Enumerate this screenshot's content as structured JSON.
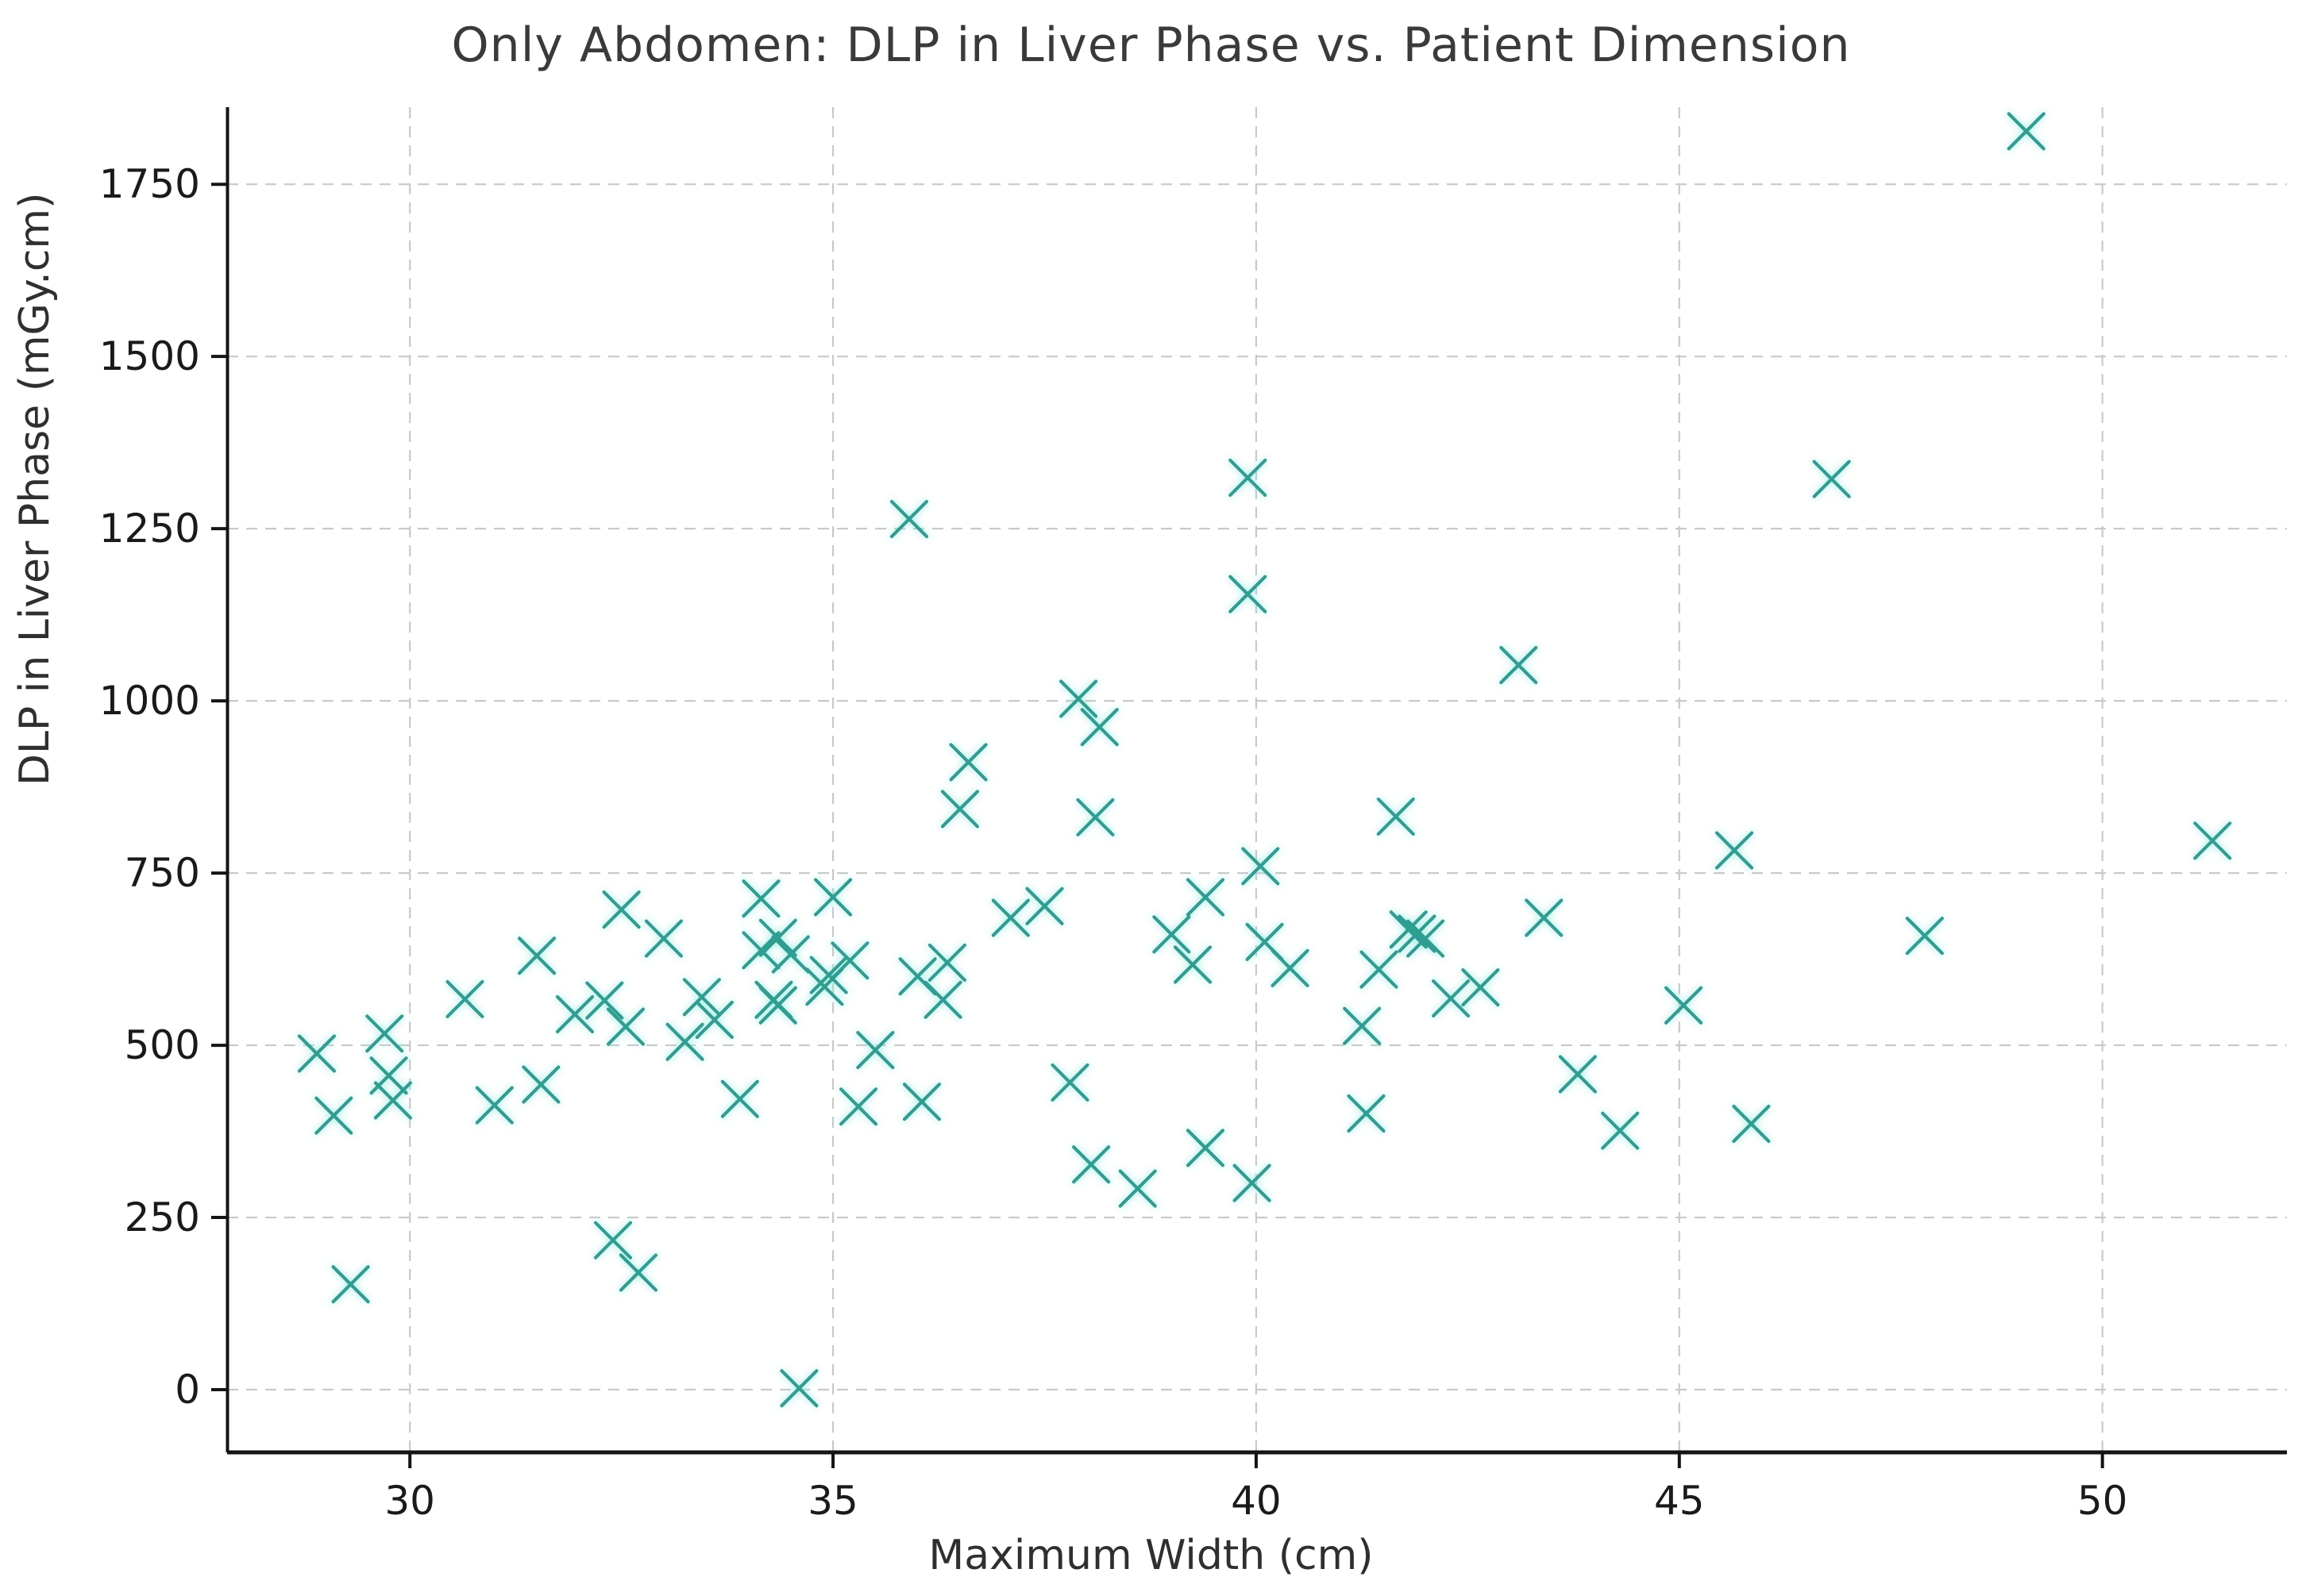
{
  "chart": {
    "title": "Only Abdomen: DLP in Liver Phase vs. Patient Dimension",
    "xlabel": "Maximum Width (cm)",
    "ylabel": "DLP in Liver Phase (mGy.cm)"
  },
  "chart_data": {
    "type": "scatter",
    "title": "Only Abdomen: DLP in Liver Phase vs. Patient Dimension",
    "xlabel": "Maximum Width (cm)",
    "ylabel": "DLP in Liver Phase (mGy.cm)",
    "marker": "x",
    "marker_color": "#2d9e92",
    "marker_glow_color": "#8fe7dd",
    "grid": true,
    "gridline_color": "#c9c9c9",
    "spine_color": "#141414",
    "legend_position": "none",
    "xlim": [
      27.84,
      52.18
    ],
    "ylim": [
      -91,
      1862
    ],
    "x_ticks": [
      30,
      35,
      40,
      45,
      50
    ],
    "y_ticks": [
      0,
      250,
      500,
      750,
      1000,
      1250,
      1500,
      1750
    ],
    "points": [
      [
        28.9,
        488
      ],
      [
        29.1,
        398
      ],
      [
        29.3,
        153
      ],
      [
        29.7,
        517
      ],
      [
        29.75,
        456
      ],
      [
        29.8,
        420
      ],
      [
        30.65,
        567
      ],
      [
        31.0,
        413
      ],
      [
        31.5,
        630
      ],
      [
        31.55,
        443
      ],
      [
        31.95,
        545
      ],
      [
        32.3,
        565
      ],
      [
        32.4,
        217
      ],
      [
        32.5,
        697
      ],
      [
        32.55,
        527
      ],
      [
        32.7,
        170
      ],
      [
        33.0,
        655
      ],
      [
        33.25,
        505
      ],
      [
        33.45,
        570
      ],
      [
        33.6,
        537
      ],
      [
        33.9,
        422
      ],
      [
        34.15,
        713
      ],
      [
        34.15,
        638
      ],
      [
        34.35,
        656
      ],
      [
        34.5,
        632
      ],
      [
        34.3,
        566
      ],
      [
        34.35,
        558
      ],
      [
        34.6,
        2
      ],
      [
        34.95,
        602
      ],
      [
        34.9,
        585
      ],
      [
        35.0,
        715
      ],
      [
        35.2,
        623
      ],
      [
        35.3,
        411
      ],
      [
        35.5,
        493
      ],
      [
        35.9,
        1264
      ],
      [
        36.0,
        600
      ],
      [
        36.05,
        418
      ],
      [
        36.3,
        566
      ],
      [
        36.35,
        620
      ],
      [
        36.5,
        843
      ],
      [
        36.6,
        911
      ],
      [
        37.1,
        685
      ],
      [
        37.5,
        702
      ],
      [
        37.8,
        446
      ],
      [
        37.9,
        1003
      ],
      [
        38.1,
        831
      ],
      [
        38.15,
        962
      ],
      [
        38.05,
        327
      ],
      [
        38.6,
        292
      ],
      [
        39.0,
        661
      ],
      [
        39.25,
        617
      ],
      [
        39.4,
        715
      ],
      [
        39.4,
        351
      ],
      [
        39.9,
        1324
      ],
      [
        39.9,
        1155
      ],
      [
        39.95,
        300
      ],
      [
        40.05,
        760
      ],
      [
        40.1,
        650
      ],
      [
        40.4,
        612
      ],
      [
        41.25,
        528
      ],
      [
        41.3,
        401
      ],
      [
        41.45,
        610
      ],
      [
        41.65,
        832
      ],
      [
        41.8,
        668
      ],
      [
        41.9,
        662
      ],
      [
        42.0,
        655
      ],
      [
        42.3,
        568
      ],
      [
        42.65,
        584
      ],
      [
        43.1,
        1052
      ],
      [
        43.4,
        685
      ],
      [
        43.8,
        458
      ],
      [
        44.3,
        376
      ],
      [
        45.05,
        558
      ],
      [
        45.65,
        783
      ],
      [
        45.85,
        386
      ],
      [
        46.8,
        1322
      ],
      [
        47.9,
        659
      ],
      [
        49.1,
        1827
      ],
      [
        51.3,
        797
      ]
    ]
  }
}
